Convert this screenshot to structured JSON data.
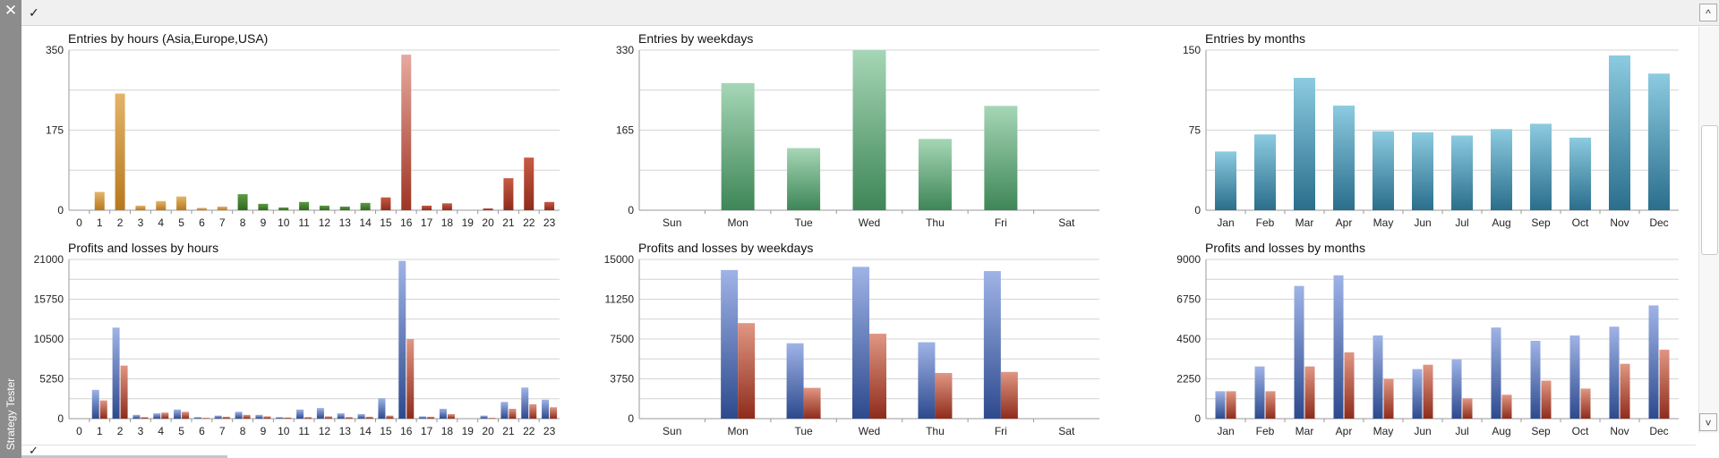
{
  "window": {
    "side_label": "Strategy Tester",
    "close_glyph": "✕",
    "check_glyph": "✓",
    "collapse_glyph": "^",
    "down_glyph": "˅"
  },
  "chart_data": [
    {
      "id": "entries-hours",
      "type": "bar",
      "title": "Entries by hours (Asia,Europe,USA)",
      "categories": [
        "0",
        "1",
        "2",
        "3",
        "4",
        "5",
        "6",
        "7",
        "8",
        "9",
        "10",
        "11",
        "12",
        "13",
        "14",
        "15",
        "16",
        "17",
        "18",
        "19",
        "20",
        "21",
        "22",
        "23"
      ],
      "series": [
        {
          "values": [
            0,
            40,
            255,
            10,
            20,
            30,
            5,
            8,
            35,
            14,
            6,
            18,
            10,
            8,
            16,
            28,
            340,
            10,
            15,
            0,
            4,
            70,
            115,
            18
          ]
        }
      ],
      "category_colors": [
        "#c0882a",
        "#c0882a",
        "#c0882a",
        "#c0882a",
        "#c0882a",
        "#c0882a",
        "#c0882a",
        "#c0882a",
        "#3d7a27",
        "#3d7a27",
        "#3d7a27",
        "#3d7a27",
        "#3d7a27",
        "#3d7a27",
        "#3d7a27",
        "#a03a26",
        "#a03a26",
        "#a03a26",
        "#a03a26",
        "#a03a26",
        "#a03a26",
        "#a03a26",
        "#a03a26",
        "#a03a26"
      ],
      "highlight_colors": {
        "16": "#d89a8e"
      },
      "yticks": [
        "0",
        "175",
        "350"
      ],
      "ylim": [
        0,
        350
      ],
      "grid": true
    },
    {
      "id": "entries-weekdays",
      "type": "bar",
      "title": "Entries by weekdays",
      "categories": [
        "Sun",
        "Mon",
        "Tue",
        "Wed",
        "Thu",
        "Fri",
        "Sat"
      ],
      "series": [
        {
          "values": [
            0,
            262,
            128,
            330,
            147,
            215,
            0
          ],
          "color": "#4a9468"
        }
      ],
      "yticks": [
        "0",
        "165",
        "330"
      ],
      "ylim": [
        0,
        330
      ],
      "grid": true
    },
    {
      "id": "entries-months",
      "type": "bar",
      "title": "Entries by months",
      "categories": [
        "Jan",
        "Feb",
        "Mar",
        "Apr",
        "May",
        "Jun",
        "Jul",
        "Aug",
        "Sep",
        "Oct",
        "Nov",
        "Dec"
      ],
      "series": [
        {
          "values": [
            55,
            71,
            124,
            98,
            74,
            73,
            70,
            76,
            81,
            68,
            145,
            128
          ],
          "color": "#2f7fa0"
        }
      ],
      "yticks": [
        "0",
        "75",
        "150"
      ],
      "ylim": [
        0,
        150
      ],
      "grid": true
    },
    {
      "id": "pl-hours",
      "type": "bar",
      "title": "Profits and losses by hours",
      "categories": [
        "0",
        "1",
        "2",
        "3",
        "4",
        "5",
        "6",
        "7",
        "8",
        "9",
        "10",
        "11",
        "12",
        "13",
        "14",
        "15",
        "16",
        "17",
        "18",
        "19",
        "20",
        "21",
        "22",
        "23"
      ],
      "series": [
        {
          "values": [
            0,
            3800,
            12000,
            500,
            700,
            1200,
            200,
            400,
            900,
            500,
            200,
            1200,
            1400,
            700,
            600,
            2700,
            20800,
            300,
            1300,
            0,
            400,
            2200,
            4100,
            2500
          ],
          "color": "#3a5a9e"
        },
        {
          "values": [
            0,
            2400,
            7000,
            200,
            800,
            900,
            100,
            250,
            500,
            300,
            150,
            200,
            300,
            200,
            250,
            400,
            10500,
            250,
            600,
            0,
            100,
            1300,
            1900,
            1500
          ],
          "color": "#a8382a"
        }
      ],
      "yticks": [
        "0",
        "5250",
        "10500",
        "15750",
        "21000"
      ],
      "ylim": [
        0,
        21000
      ],
      "grid": true
    },
    {
      "id": "pl-weekdays",
      "type": "bar",
      "title": "Profits and losses by weekdays",
      "categories": [
        "Sun",
        "Mon",
        "Tue",
        "Wed",
        "Thu",
        "Fri",
        "Sat"
      ],
      "series": [
        {
          "values": [
            0,
            14000,
            7100,
            14300,
            7200,
            13900,
            0
          ],
          "color": "#3a5a9e"
        },
        {
          "values": [
            0,
            9000,
            2900,
            8000,
            4300,
            4400,
            0
          ],
          "color": "#a8382a"
        }
      ],
      "yticks": [
        "0",
        "3750",
        "7500",
        "11250",
        "15000"
      ],
      "ylim": [
        0,
        15000
      ],
      "grid": true
    },
    {
      "id": "pl-months",
      "type": "bar",
      "title": "Profits and losses by months",
      "categories": [
        "Jan",
        "Feb",
        "Mar",
        "Apr",
        "May",
        "Jun",
        "Jul",
        "Aug",
        "Sep",
        "Oct",
        "Nov",
        "Dec"
      ],
      "series": [
        {
          "values": [
            1550,
            2950,
            7500,
            8100,
            4700,
            2800,
            3350,
            5150,
            4400,
            4700,
            5200,
            6400
          ],
          "color": "#3a5a9e"
        },
        {
          "values": [
            1550,
            1550,
            2950,
            3750,
            2250,
            3050,
            1150,
            1350,
            2150,
            1700,
            3100,
            3900
          ],
          "color": "#a8382a"
        }
      ],
      "yticks": [
        "0",
        "2250",
        "4500",
        "6750",
        "9000"
      ],
      "ylim": [
        0,
        9000
      ],
      "grid": true
    }
  ]
}
